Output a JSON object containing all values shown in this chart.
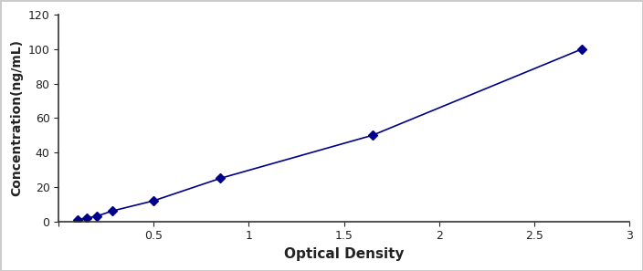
{
  "x_data": [
    0.1,
    0.15,
    0.2,
    0.28,
    0.5,
    0.85,
    1.65,
    2.75
  ],
  "y_data": [
    1.0,
    2.0,
    3.0,
    6.0,
    12.0,
    25.0,
    50.0,
    100.0
  ],
  "color": "#00008B",
  "marker": "D",
  "marker_size": 5,
  "line_width": 1.2,
  "xlabel": "Optical Density",
  "ylabel": "Concentration(ng/mL)",
  "xlim": [
    0,
    3.0
  ],
  "ylim": [
    0,
    120
  ],
  "xticks": [
    0,
    0.5,
    1.0,
    1.5,
    2.0,
    2.5,
    3.0
  ],
  "yticks": [
    0,
    20,
    40,
    60,
    80,
    100,
    120
  ],
  "xlabel_fontsize": 11,
  "ylabel_fontsize": 10,
  "tick_fontsize": 9,
  "background_color": "#ffffff",
  "figure_edge_color": "#cccccc"
}
